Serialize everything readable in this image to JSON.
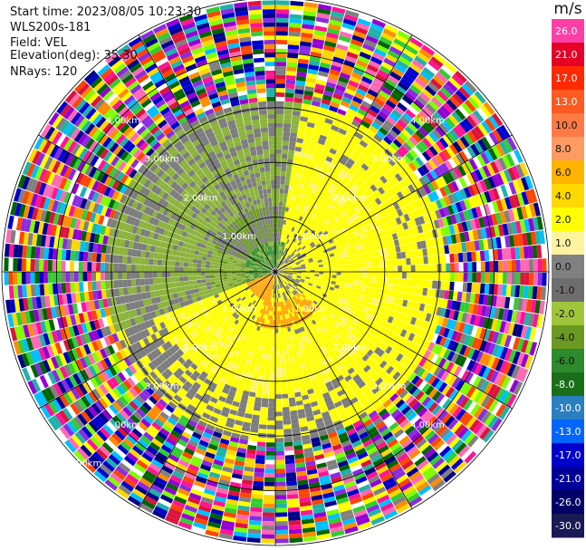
{
  "header": {
    "start_time": "Start time: 2023/08/05 10:23:30",
    "station": "WLS200s-181",
    "field": "Field: VEL",
    "elevation": "Elevation(deg): 35.30",
    "nrays": "NRays: 120"
  },
  "ppi": {
    "ring_labels": [
      "1.00km",
      "2.00km",
      "3.00km",
      "4.00km",
      "5.00km"
    ],
    "nrays": 120,
    "max_range_km": 5.0
  },
  "colorbar": {
    "unit": "m/s",
    "tick_labels": [
      "26.0",
      "21.0",
      "17.0",
      "13.0",
      "10.0",
      "8.0",
      "6.0",
      "4.0",
      "2.0",
      "1.0",
      "0.0",
      "-1.0",
      "-2.0",
      "-4.0",
      "-6.0",
      "-8.0",
      "-10.0",
      "-13.0",
      "-17.0",
      "-21.0",
      "-26.0",
      "-30.0"
    ],
    "colors": [
      "#ff3fa6",
      "#e60026",
      "#ff2a00",
      "#ff5a1f",
      "#ff7a45",
      "#ff9b63",
      "#ffb400",
      "#ffd800",
      "#ffff00",
      "#fff3a0",
      "#808080",
      "#6e6e6e",
      "#9fc53a",
      "#6b9a22",
      "#2d8a2d",
      "#1a6e1a",
      "#2a7fc1",
      "#0066ff",
      "#0000cc",
      "#000099",
      "#000066",
      "#1a1a55"
    ]
  },
  "scene_colors": {
    "gray": "#7d7d7d",
    "olive": "#8cb33c",
    "olive_dark": "#6d9a22",
    "green_dark": "#2e8b2e",
    "yellow": "#ffff00",
    "yellow_pale": "#fff46a",
    "orange": "#ffa500",
    "noise": [
      "#ff1493",
      "#0000cd",
      "#ffd700",
      "#32cd32",
      "#ff4500",
      "#00bfff",
      "#8a2be2",
      "#ff69b4",
      "#ffff00",
      "#00008b",
      "#dc143c",
      "#7fff00",
      "#ff8c00",
      "#20b2aa",
      "#9400d3",
      "#ffffff",
      "#808080",
      "#006400"
    ]
  }
}
